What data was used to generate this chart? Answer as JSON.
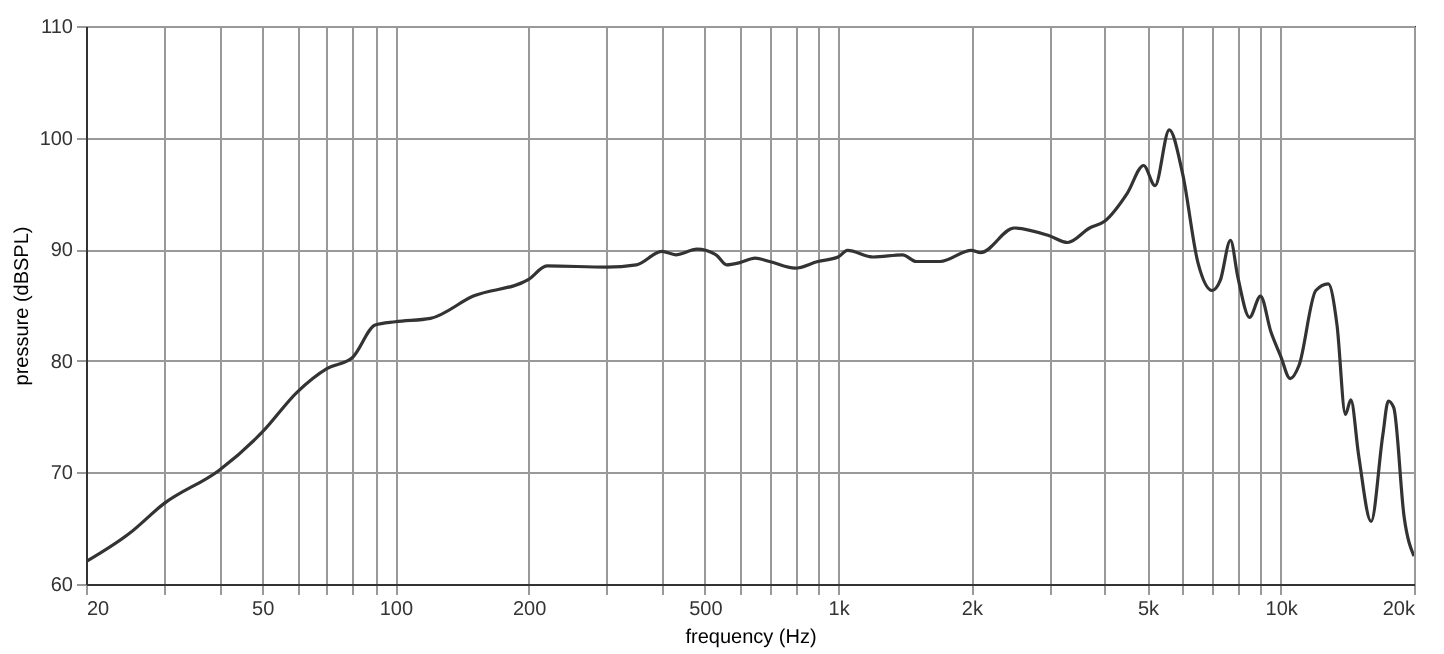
{
  "chart_data": {
    "type": "line",
    "xlabel": "frequency (Hz)",
    "ylabel": "pressure (dBSPL)",
    "log": "x",
    "grid": true,
    "marker": "none",
    "line_style": "solid",
    "xlim": [
      20,
      20000
    ],
    "ylim": [
      60,
      110
    ],
    "xticks": [
      20,
      {
        "value": 30,
        "label": null
      },
      {
        "value": 40,
        "label": null
      },
      50,
      {
        "value": 60,
        "label": null
      },
      {
        "value": 70,
        "label": null
      },
      {
        "value": 80,
        "label": null
      },
      {
        "value": 90,
        "label": null
      },
      100,
      200,
      {
        "value": 300,
        "label": null
      },
      {
        "value": 400,
        "label": null
      },
      500,
      {
        "value": 600,
        "label": null
      },
      {
        "value": 700,
        "label": null
      },
      {
        "value": 800,
        "label": null
      },
      {
        "value": 900,
        "label": null
      },
      {
        "value": 1000,
        "label": "1k"
      },
      {
        "value": 2000,
        "label": "2k"
      },
      {
        "value": 3000,
        "label": null
      },
      {
        "value": 4000,
        "label": null
      },
      {
        "value": 5000,
        "label": "5k"
      },
      {
        "value": 6000,
        "label": null
      },
      {
        "value": 7000,
        "label": null
      },
      {
        "value": 8000,
        "label": null
      },
      {
        "value": 9000,
        "label": null
      },
      {
        "value": 10000,
        "label": "10k"
      },
      {
        "value": 20000,
        "label": "20k"
      }
    ],
    "yticks": [
      60,
      70,
      80,
      90,
      100,
      110
    ],
    "series": [
      {
        "color": "#333333",
        "x": [
          20,
          25,
          30,
          40,
          50,
          60,
          70,
          80,
          90,
          100,
          120,
          150,
          200,
          220,
          300,
          350,
          400,
          430,
          480,
          530,
          560,
          600,
          650,
          700,
          800,
          900,
          1000,
          1050,
          1200,
          1400,
          1500,
          1700,
          2000,
          2100,
          2500,
          3000,
          3300,
          3700,
          4000,
          4500,
          4900,
          5200,
          5600,
          6000,
          6500,
          7000,
          7300,
          7700,
          8000,
          8500,
          9000,
          9500,
          10000,
          10500,
          11000,
          12000,
          12800,
          13400,
          14000,
          14400,
          15000,
          16000,
          17000,
          17500,
          18000,
          19000,
          20000
        ],
        "values": [
          62,
          64.5,
          67.2,
          70.2,
          73.6,
          77.2,
          79.3,
          80.3,
          83.2,
          83.5,
          83.8,
          85.8,
          87.3,
          88.5,
          88.4,
          88.6,
          89.8,
          89.5,
          90,
          89.5,
          88.6,
          88.8,
          89.2,
          88.9,
          88.3,
          88.9,
          89.3,
          89.9,
          89.3,
          89.5,
          88.9,
          88.9,
          89.9,
          89.7,
          91.9,
          91.2,
          90.6,
          91.9,
          92.5,
          95,
          97.5,
          95.7,
          100.7,
          96.8,
          88.8,
          86.3,
          87.2,
          90.8,
          87.5,
          83.9,
          85.8,
          82.6,
          80.4,
          78.4,
          79.6,
          86.3,
          86.9,
          83.2,
          75.2,
          76.5,
          71.5,
          65.6,
          73.3,
          76.4,
          75.8,
          66,
          62.5
        ]
      }
    ]
  }
}
